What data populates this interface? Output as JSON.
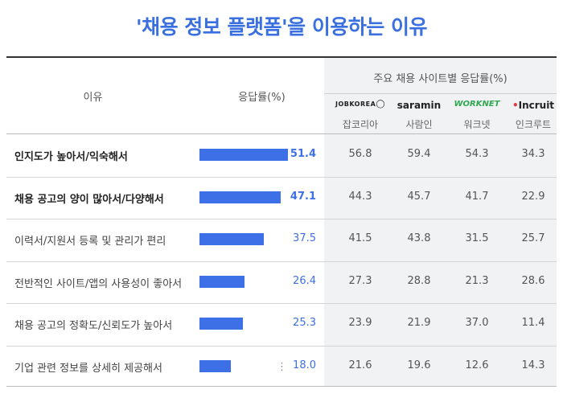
{
  "title": "'채용 정보 플랫폼'을 이용하는 이유",
  "headers": {
    "reason": "이유",
    "rate": "응답률(%)",
    "sites_group": "주요 채용 사이트별 응답률(%)"
  },
  "sites": [
    {
      "logo": "JOBKOREA",
      "name": "잡코리아"
    },
    {
      "logo": "saramin",
      "name": "사람인"
    },
    {
      "logo": "WORKNET",
      "name": "워크넷"
    },
    {
      "logo": "Incruit",
      "name": "인크루트"
    }
  ],
  "more_indicator": "⋮",
  "colors": {
    "accent": "#3d6fe6",
    "title": "#3a6fe0"
  },
  "chart_data": {
    "type": "table",
    "title": "'채용 정보 플랫폼'을 이용하는 이유",
    "columns": [
      "이유",
      "응답률(%)",
      "잡코리아",
      "사람인",
      "워크넷",
      "인크루트"
    ],
    "categories": [
      "인지도가 높아서/익숙해서",
      "채용 공고의 양이 많아서/다양해서",
      "이력서/지원서 등록 및 관리가 편리",
      "전반적인 사이트/앱의 사용성이 좋아서",
      "채용 공고의 정확도/신뢰도가 높아서",
      "기업 관련 정보를 상세히 제공해서"
    ],
    "bold_rows": [
      0,
      1
    ],
    "series": [
      {
        "name": "응답률(%)",
        "values": [
          51.4,
          47.1,
          37.5,
          26.4,
          25.3,
          18.0
        ]
      },
      {
        "name": "잡코리아",
        "values": [
          56.8,
          44.3,
          41.5,
          27.3,
          23.9,
          21.6
        ]
      },
      {
        "name": "사람인",
        "values": [
          59.4,
          45.7,
          43.8,
          28.8,
          21.9,
          19.6
        ]
      },
      {
        "name": "워크넷",
        "values": [
          54.3,
          41.7,
          31.5,
          21.3,
          37.0,
          12.6
        ]
      },
      {
        "name": "인크루트",
        "values": [
          34.3,
          22.9,
          25.7,
          28.6,
          11.4,
          14.3
        ]
      }
    ],
    "value_labels": [
      "51.4",
      "47.1",
      "37.5",
      "26.4",
      "25.3",
      "18.0"
    ],
    "site_labels": [
      [
        "56.8",
        "44.3",
        "41.5",
        "27.3",
        "23.9",
        "21.6"
      ],
      [
        "59.4",
        "45.7",
        "43.8",
        "28.8",
        "21.9",
        "19.6"
      ],
      [
        "54.3",
        "41.7",
        "31.5",
        "21.3",
        "37.0",
        "12.6"
      ],
      [
        "34.3",
        "22.9",
        "25.7",
        "28.6",
        "11.4",
        "14.3"
      ]
    ]
  }
}
